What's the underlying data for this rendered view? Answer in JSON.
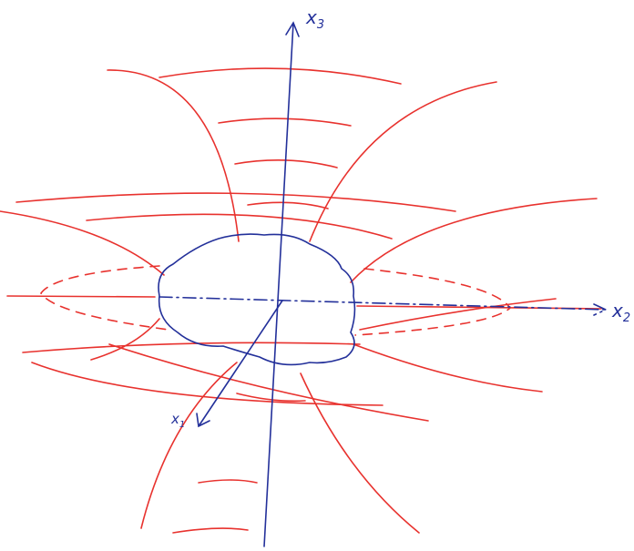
{
  "axes": [
    {
      "label": "x",
      "subscript": "3"
    },
    {
      "label": "x",
      "subscript": "2"
    },
    {
      "label": "x",
      "subscript": "1"
    }
  ]
}
